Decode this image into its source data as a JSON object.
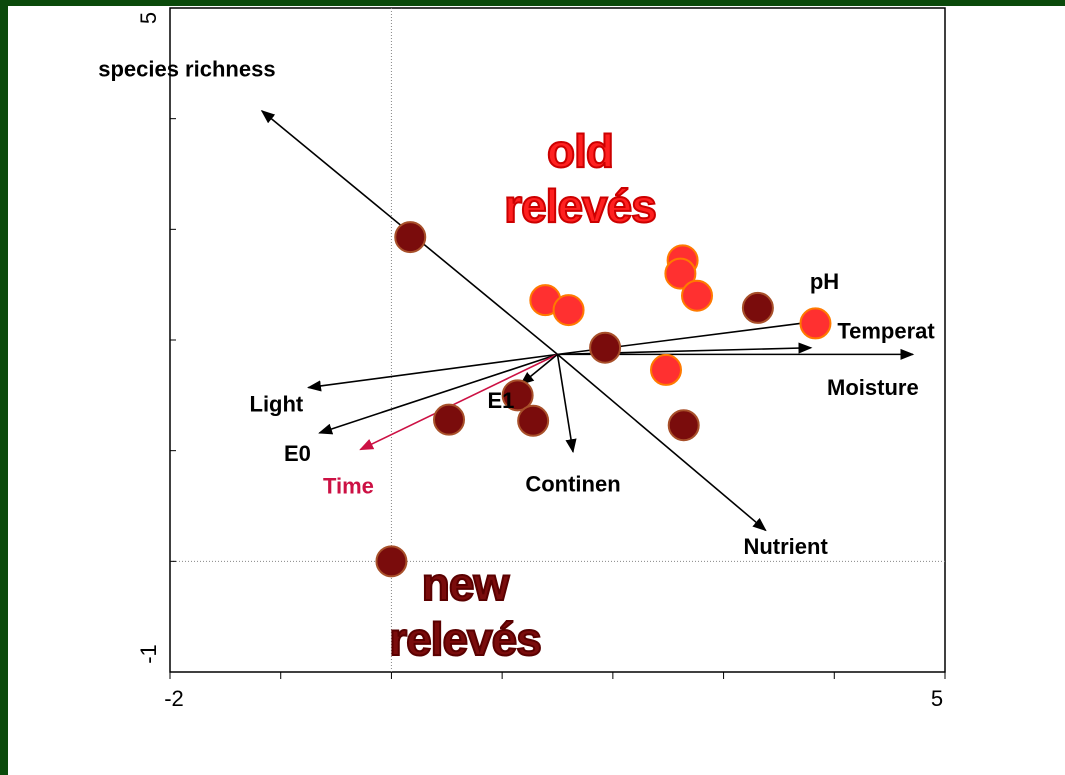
{
  "chart_data": {
    "type": "biplot",
    "xlim": [
      -2,
      5
    ],
    "ylim": [
      -1,
      5
    ],
    "xticks": [
      -2,
      5
    ],
    "yticks": [
      -1,
      5
    ],
    "xminor": [
      -1,
      0,
      1,
      2,
      3,
      4
    ],
    "yminor": [
      0,
      1,
      2,
      3,
      4
    ],
    "zero_lines": true,
    "series": [
      {
        "color": "#7a0c0c",
        "stroke": "#a8502a",
        "x": [
          0.17,
          1.93,
          3.31,
          1.14,
          0.52,
          1.28,
          2.64,
          0
        ],
        "y": [
          2.93,
          1.93,
          2.29,
          1.5,
          1.28,
          1.27,
          1.23,
          0
        ]
      },
      {
        "color": "#ff3030",
        "stroke": "#ff7a00",
        "x": [
          1.39,
          1.6,
          2.63,
          2.61,
          2.76,
          3.83,
          2.48
        ],
        "y": [
          2.36,
          2.27,
          2.72,
          2.6,
          2.4,
          2.15,
          1.73
        ]
      }
    ],
    "vector_origin": [
      1.5,
      1.87
    ],
    "vectors": [
      {
        "label": "species richness",
        "x": -1.17,
        "y": 4.07,
        "color": "#000000"
      },
      {
        "label": "Light",
        "x": -0.75,
        "y": 1.57,
        "color": "#000000"
      },
      {
        "label": "E0",
        "x": -0.65,
        "y": 1.16,
        "color": "#000000"
      },
      {
        "label": "Time",
        "x": -0.28,
        "y": 1.01,
        "color": "#cc1144"
      },
      {
        "label": "E1",
        "x": 1.17,
        "y": 1.6,
        "color": "#000000"
      },
      {
        "label": "Continen",
        "x": 1.64,
        "y": 0.99,
        "color": "#000000"
      },
      {
        "label": "Nutrient",
        "x": 3.38,
        "y": 0.28,
        "color": "#000000"
      },
      {
        "label": "pH",
        "x": 3.93,
        "y": 2.18,
        "color": "#000000"
      },
      {
        "label": "Temperat",
        "x": 3.79,
        "y": 1.93,
        "color": "#000000"
      },
      {
        "label": "Moisture",
        "x": 4.71,
        "y": 1.87,
        "color": "#000000"
      }
    ],
    "annotations": [
      {
        "lines": [
          "old",
          "relevés"
        ],
        "color": "#ff2020",
        "stroke": "#cc0000"
      },
      {
        "lines": [
          "new",
          "relevés"
        ],
        "color": "#7a0c0c",
        "stroke": "#5a0000"
      }
    ]
  }
}
